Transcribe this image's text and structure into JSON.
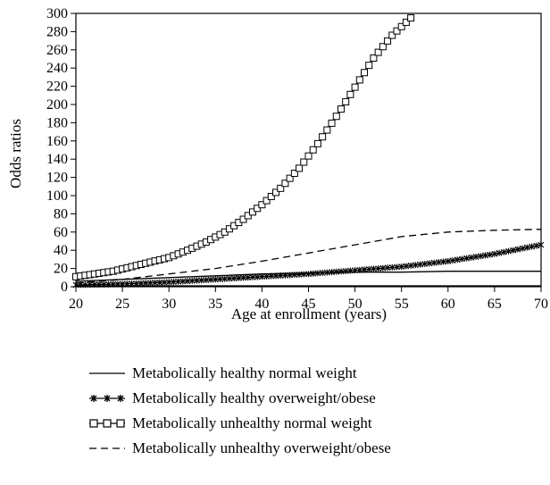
{
  "chart_data": {
    "type": "line",
    "xlabel": "Age at enrollment (years)",
    "ylabel": "Odds ratios",
    "xlim": [
      20,
      70
    ],
    "ylim": [
      0,
      300
    ],
    "x_ticks": [
      20,
      25,
      30,
      35,
      40,
      45,
      50,
      55,
      60,
      65,
      70
    ],
    "y_ticks": [
      0,
      20,
      40,
      60,
      80,
      100,
      120,
      140,
      160,
      180,
      200,
      220,
      240,
      260,
      280,
      300
    ],
    "grid": false,
    "legend_position": "bottom",
    "series": [
      {
        "name": "Metabolically healthy normal weight",
        "style": "solid",
        "x": [
          20,
          25,
          30,
          35,
          40,
          45,
          50,
          55,
          60,
          65,
          70
        ],
        "y": [
          1,
          1,
          1,
          1,
          1,
          1,
          1,
          1,
          1,
          1,
          1
        ]
      },
      {
        "name": "Metabolically healthy overweight/obese",
        "style": "solid-star-markers",
        "x": [
          20,
          25,
          30,
          35,
          40,
          45,
          50,
          55,
          60,
          65,
          70
        ],
        "y": [
          2,
          3,
          5,
          8,
          11,
          14,
          18,
          22,
          28,
          36,
          46
        ]
      },
      {
        "name": "Metabolically unhealthy normal weight",
        "style": "solid-square-markers",
        "x": [
          20,
          22,
          24,
          26,
          28,
          30,
          32,
          34,
          36,
          38,
          40,
          42,
          44,
          46,
          48,
          50,
          52,
          54,
          56
        ],
        "y": [
          11,
          14,
          17,
          22,
          27,
          32,
          40,
          49,
          60,
          74,
          90,
          108,
          130,
          157,
          187,
          219,
          251,
          276,
          295
        ]
      },
      {
        "name": "Metabolically unhealthy overweight/obese",
        "style": "dashed",
        "x": [
          20,
          25,
          30,
          35,
          40,
          45,
          50,
          55,
          60,
          65,
          70
        ],
        "y": [
          4,
          8,
          14,
          20,
          28,
          37,
          46,
          55,
          60,
          62,
          63
        ]
      },
      {
        "name": "",
        "style": "solid",
        "x": [
          20,
          25,
          30,
          35,
          40,
          45,
          50,
          55,
          60,
          65,
          70
        ],
        "y": [
          6,
          8,
          10,
          12,
          14,
          15,
          16,
          16,
          17,
          17,
          17
        ]
      }
    ]
  }
}
